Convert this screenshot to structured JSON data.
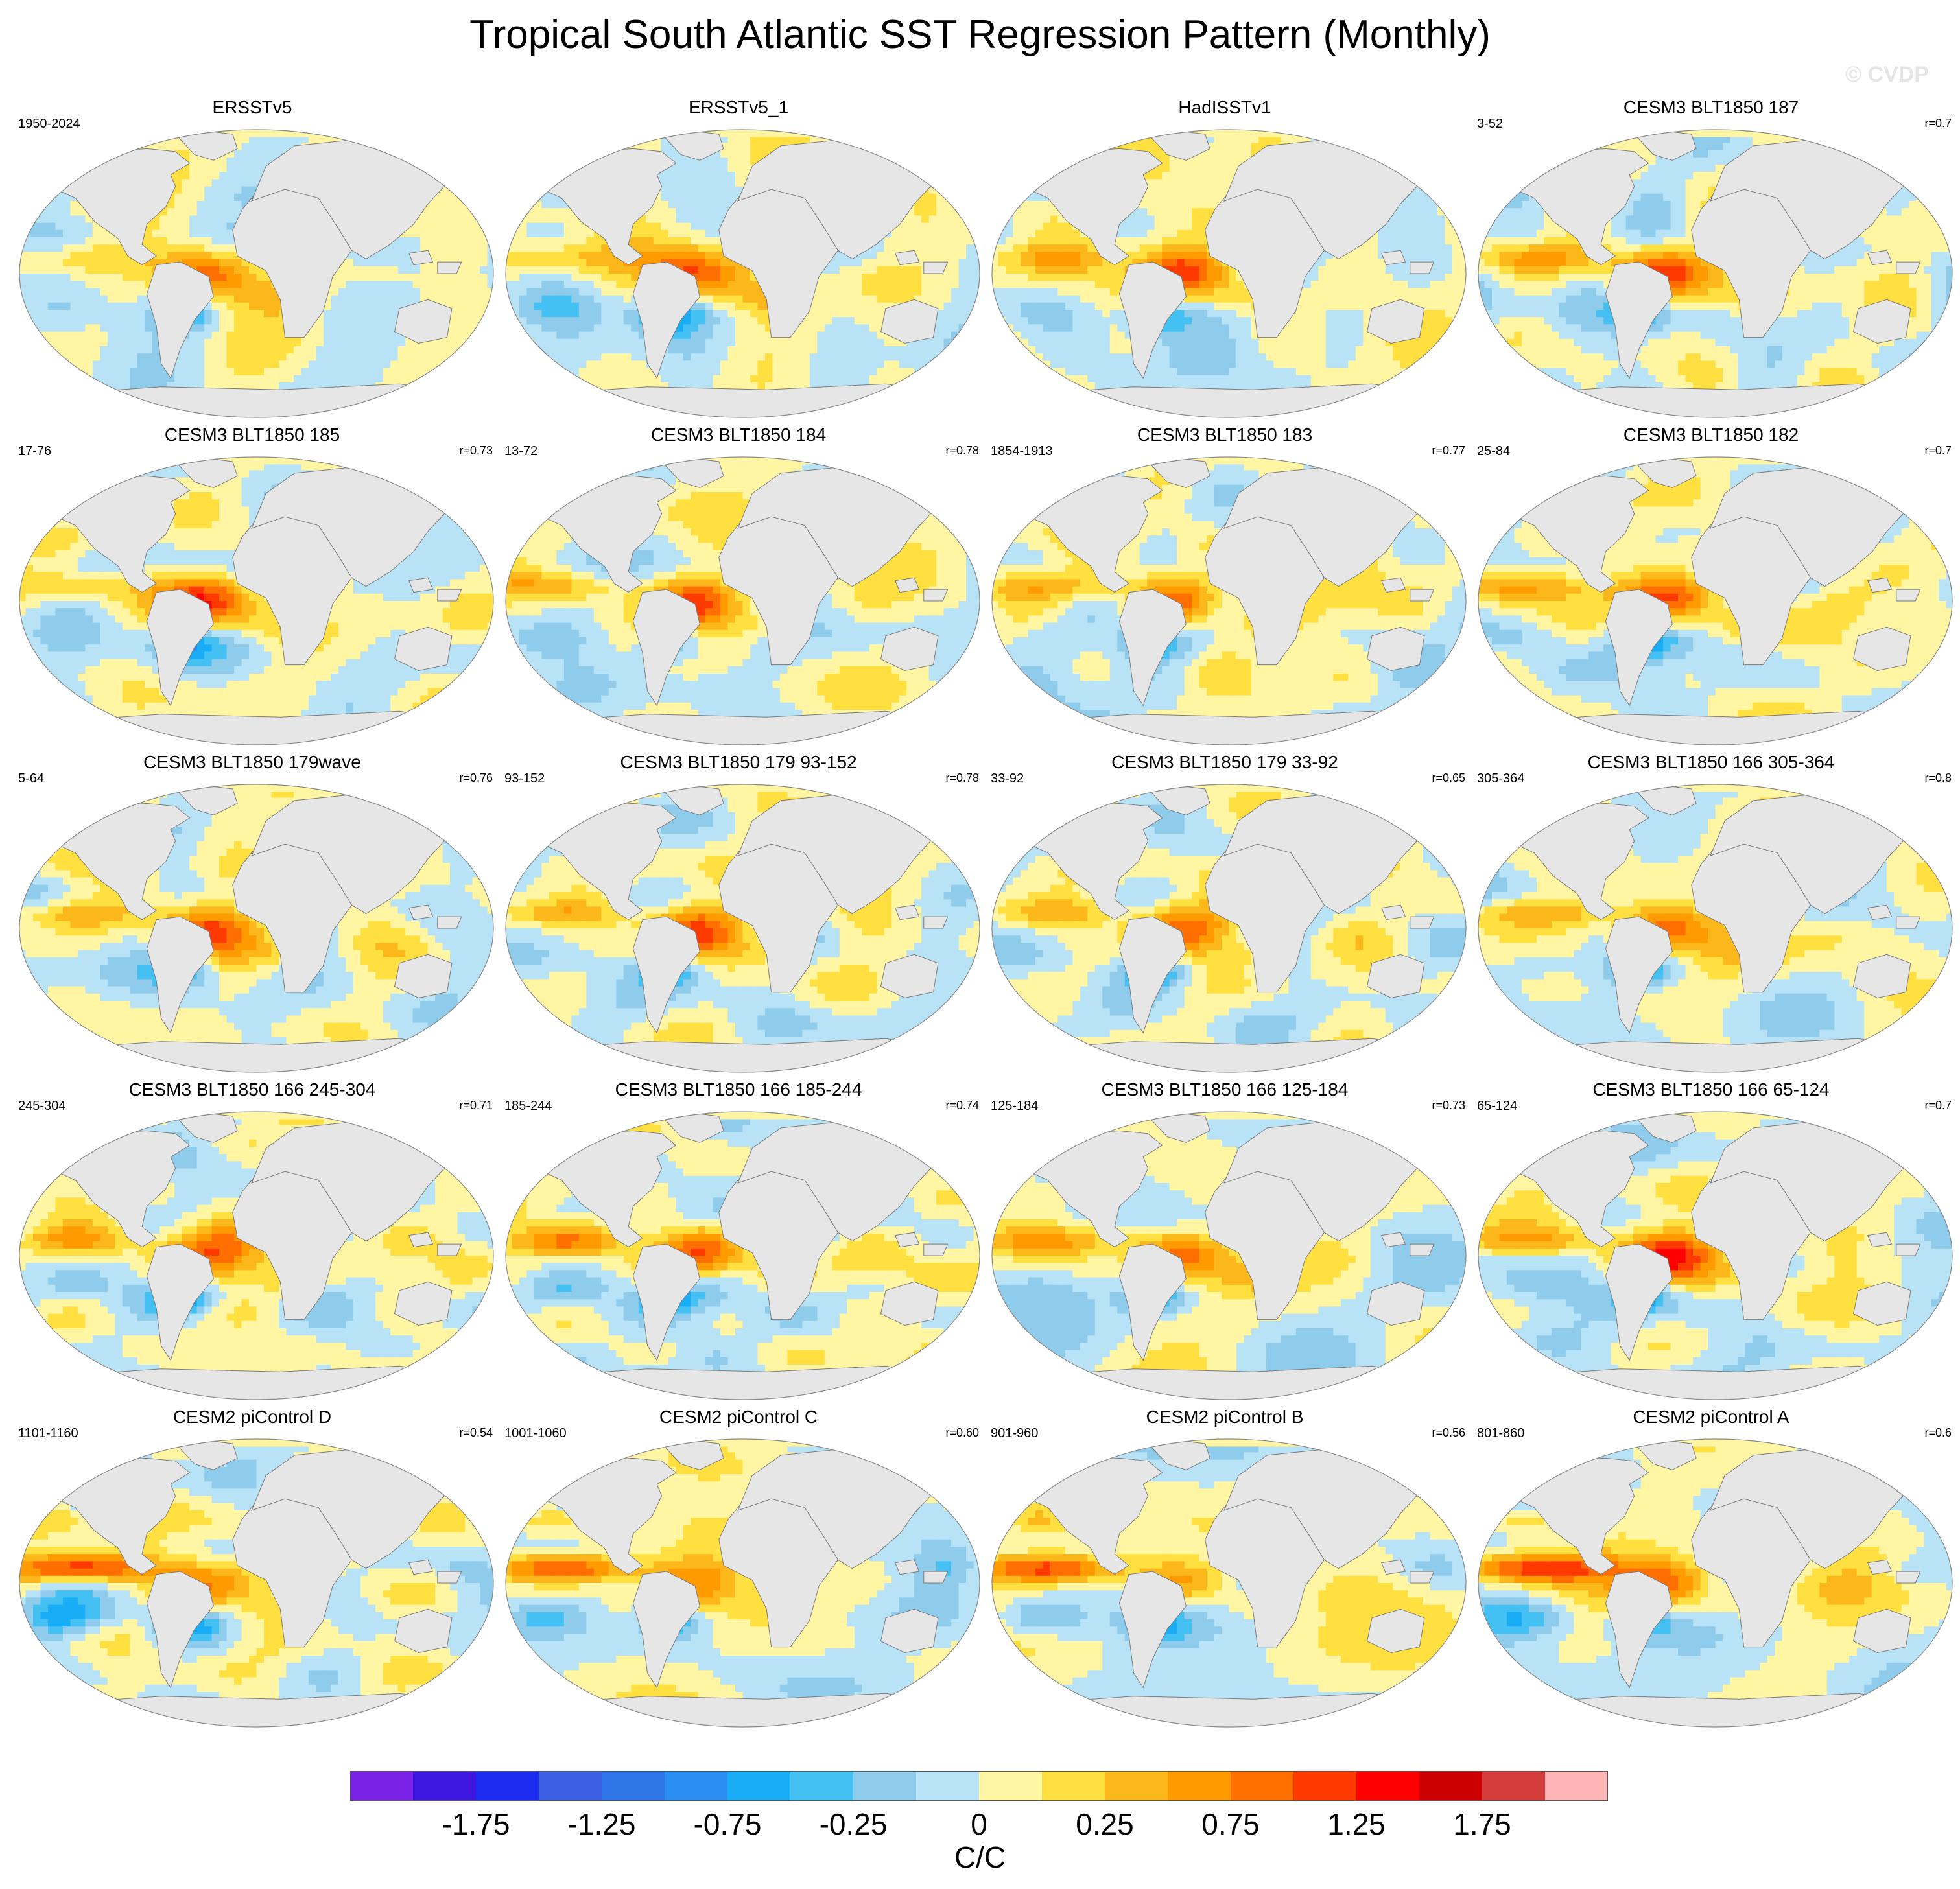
{
  "title": "Tropical South Atlantic SST Regression Pattern (Monthly)",
  "watermark": "© CVDP",
  "colorbar": {
    "unit": "C/C",
    "colors": [
      "#7a22e6",
      "#3d17e0",
      "#1e2cf2",
      "#3b5ee3",
      "#2f77e8",
      "#2a8ff0",
      "#19adf6",
      "#45c0f2",
      "#8fcbeb",
      "#b8e2f5",
      "#fff5a3",
      "#ffe040",
      "#fcb81b",
      "#ff9a00",
      "#ff6e00",
      "#ff3a00",
      "#ff0000",
      "#cc0000",
      "#d43c3c",
      "#ffb5b5"
    ],
    "tick_labels": [
      "-1.75",
      "-1.25",
      "-0.75",
      "-0.25",
      "0",
      "0.25",
      "0.75",
      "1.25",
      "1.75"
    ]
  },
  "panels": [
    {
      "title": "ERSSTv5",
      "years": "1950-2024",
      "corr": "",
      "seed": 1,
      "style": "obs"
    },
    {
      "title": "ERSSTv5_1",
      "years": "",
      "corr": "",
      "seed": 2,
      "style": "obs"
    },
    {
      "title": "HadISSTv1",
      "years": "",
      "corr": "",
      "seed": 3,
      "style": "obs"
    },
    {
      "title": "CESM3 BLT1850 187",
      "years": "3-52",
      "corr": "r=0.7",
      "seed": 4,
      "style": "model"
    },
    {
      "title": "CESM3 BLT1850 185",
      "years": "17-76",
      "corr": "r=0.73",
      "seed": 5,
      "style": "model"
    },
    {
      "title": "CESM3 BLT1850 184",
      "years": "13-72",
      "corr": "r=0.78",
      "seed": 6,
      "style": "model"
    },
    {
      "title": "CESM3 BLT1850 183",
      "years": "1854-1913",
      "corr": "r=0.77",
      "seed": 7,
      "style": "model"
    },
    {
      "title": "CESM3 BLT1850 182",
      "years": "25-84",
      "corr": "r=0.7",
      "seed": 8,
      "style": "model"
    },
    {
      "title": "CESM3 BLT1850 179wave",
      "years": "5-64",
      "corr": "r=0.76",
      "seed": 9,
      "style": "model"
    },
    {
      "title": "CESM3 BLT1850 179 93-152",
      "years": "93-152",
      "corr": "r=0.78",
      "seed": 10,
      "style": "model"
    },
    {
      "title": "CESM3 BLT1850 179 33-92",
      "years": "33-92",
      "corr": "r=0.65",
      "seed": 11,
      "style": "model"
    },
    {
      "title": "CESM3 BLT1850 166 305-364",
      "years": "305-364",
      "corr": "r=0.8",
      "seed": 12,
      "style": "model"
    },
    {
      "title": "CESM3 BLT1850 166 245-304",
      "years": "245-304",
      "corr": "r=0.71",
      "seed": 13,
      "style": "model"
    },
    {
      "title": "CESM3 BLT1850 166 185-244",
      "years": "185-244",
      "corr": "r=0.74",
      "seed": 14,
      "style": "model"
    },
    {
      "title": "CESM3 BLT1850 166 125-184",
      "years": "125-184",
      "corr": "r=0.73",
      "seed": 15,
      "style": "model"
    },
    {
      "title": "CESM3 BLT1850 166 65-124",
      "years": "65-124",
      "corr": "r=0.7",
      "seed": 16,
      "style": "model"
    },
    {
      "title": "CESM2 piControl D",
      "years": "1101-1160",
      "corr": "r=0.54",
      "seed": 17,
      "style": "cesm2"
    },
    {
      "title": "CESM2 piControl C",
      "years": "1001-1060",
      "corr": "r=0.60",
      "seed": 18,
      "style": "cesm2"
    },
    {
      "title": "CESM2 piControl B",
      "years": "901-960",
      "corr": "r=0.56",
      "seed": 19,
      "style": "cesm2"
    },
    {
      "title": "CESM2 piControl A",
      "years": "801-860",
      "corr": "r=0.6",
      "seed": 20,
      "style": "cesm2"
    }
  ]
}
